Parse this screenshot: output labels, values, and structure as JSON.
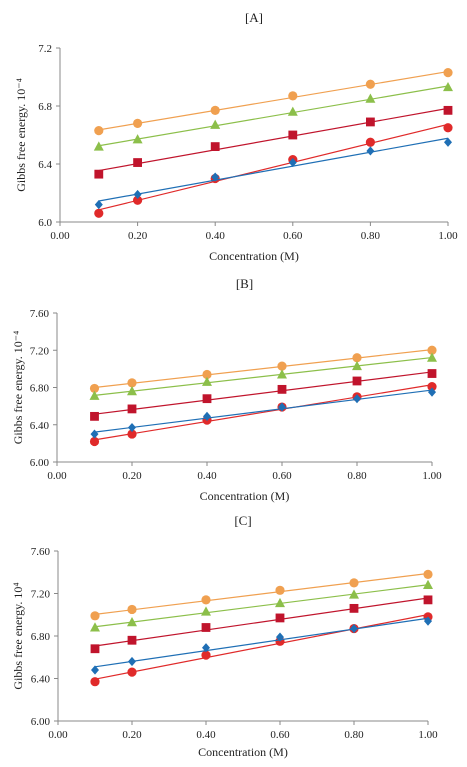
{
  "chart_data": [
    {
      "type": "scatter",
      "title": "[A]",
      "xlabel": "Concentration (M)",
      "ylabel": "Gibbs free energy. 10⁻⁴",
      "xlim": [
        0,
        1
      ],
      "ylim": [
        6.0,
        7.2
      ],
      "xticks": [
        "0.00",
        "0.20",
        "0.40",
        "0.60",
        "0.80",
        "1.00"
      ],
      "yticks": [
        "6.0",
        "6.4",
        "6.8",
        "7.2"
      ],
      "grid": false,
      "legend": "none",
      "x": [
        0.1,
        0.2,
        0.4,
        0.6,
        0.8,
        1.0
      ],
      "series": [
        {
          "marker": "circle",
          "color": "#f0a050",
          "line_color": "#f0a050",
          "values": [
            6.63,
            6.68,
            6.77,
            6.87,
            6.95,
            7.03
          ]
        },
        {
          "marker": "triangle",
          "color": "#8cbf4a",
          "line_color": "#8cbf4a",
          "values": [
            6.52,
            6.57,
            6.67,
            6.76,
            6.85,
            6.93
          ]
        },
        {
          "marker": "square",
          "color": "#c0142c",
          "line_color": "#c0142c",
          "values": [
            6.33,
            6.41,
            6.52,
            6.6,
            6.69,
            6.77
          ]
        },
        {
          "marker": "circle",
          "color": "#e02a2a",
          "line_color": "#e02a2a",
          "values": [
            6.06,
            6.15,
            6.3,
            6.43,
            6.55,
            6.65
          ]
        },
        {
          "marker": "diamond",
          "color": "#1f6fb5",
          "line_color": "#1f6fb5",
          "values": [
            6.12,
            6.19,
            6.31,
            6.41,
            6.49,
            6.55
          ]
        }
      ]
    },
    {
      "type": "scatter",
      "title": "[B]",
      "xlabel": "Concentration (M)",
      "ylabel": "Gibbs free energy. 10⁻⁴",
      "xlim": [
        0,
        1
      ],
      "ylim": [
        6.0,
        7.6
      ],
      "xticks": [
        "0.00",
        "0.20",
        "0.40",
        "0.60",
        "0.80",
        "1.00"
      ],
      "yticks": [
        "6.00",
        "6.40",
        "6.80",
        "7.20",
        "7.60"
      ],
      "grid": false,
      "legend": "none",
      "x": [
        0.1,
        0.2,
        0.4,
        0.6,
        0.8,
        1.0
      ],
      "series": [
        {
          "marker": "circle",
          "color": "#f0a050",
          "line_color": "#f0a050",
          "values": [
            6.79,
            6.85,
            6.94,
            7.03,
            7.12,
            7.2
          ]
        },
        {
          "marker": "triangle",
          "color": "#8cbf4a",
          "line_color": "#8cbf4a",
          "values": [
            6.71,
            6.76,
            6.86,
            6.94,
            7.03,
            7.12
          ]
        },
        {
          "marker": "square",
          "color": "#c0142c",
          "line_color": "#c0142c",
          "values": [
            6.49,
            6.57,
            6.68,
            6.78,
            6.87,
            6.95
          ]
        },
        {
          "marker": "circle",
          "color": "#e02a2a",
          "line_color": "#e02a2a",
          "values": [
            6.22,
            6.3,
            6.45,
            6.59,
            6.7,
            6.81
          ]
        },
        {
          "marker": "diamond",
          "color": "#1f6fb5",
          "line_color": "#1f6fb5",
          "values": [
            6.3,
            6.37,
            6.49,
            6.59,
            6.68,
            6.75
          ]
        }
      ]
    },
    {
      "type": "scatter",
      "title": "[C]",
      "xlabel": "Concentration (M)",
      "ylabel": "Gibbs free energy.  10⁴",
      "xlim": [
        0,
        1
      ],
      "ylim": [
        6.0,
        7.6
      ],
      "xticks": [
        "0.00",
        "0.20",
        "0.40",
        "0.60",
        "0.80",
        "1.00"
      ],
      "yticks": [
        "6.00",
        "6.40",
        "6.80",
        "7.20",
        "7.60"
      ],
      "grid": false,
      "legend": "none",
      "x": [
        0.1,
        0.2,
        0.4,
        0.6,
        0.8,
        1.0
      ],
      "series": [
        {
          "marker": "circle",
          "color": "#f0a050",
          "line_color": "#f0a050",
          "values": [
            6.99,
            7.05,
            7.14,
            7.23,
            7.3,
            7.38
          ]
        },
        {
          "marker": "triangle",
          "color": "#8cbf4a",
          "line_color": "#8cbf4a",
          "values": [
            6.88,
            6.93,
            7.03,
            7.11,
            7.19,
            7.28
          ]
        },
        {
          "marker": "square",
          "color": "#c0142c",
          "line_color": "#c0142c",
          "values": [
            6.68,
            6.76,
            6.88,
            6.97,
            7.06,
            7.14
          ]
        },
        {
          "marker": "circle",
          "color": "#e02a2a",
          "line_color": "#e02a2a",
          "values": [
            6.37,
            6.46,
            6.62,
            6.75,
            6.87,
            6.98
          ]
        },
        {
          "marker": "diamond",
          "color": "#1f6fb5",
          "line_color": "#1f6fb5",
          "values": [
            6.48,
            6.56,
            6.69,
            6.79,
            6.87,
            6.94
          ]
        }
      ]
    }
  ]
}
